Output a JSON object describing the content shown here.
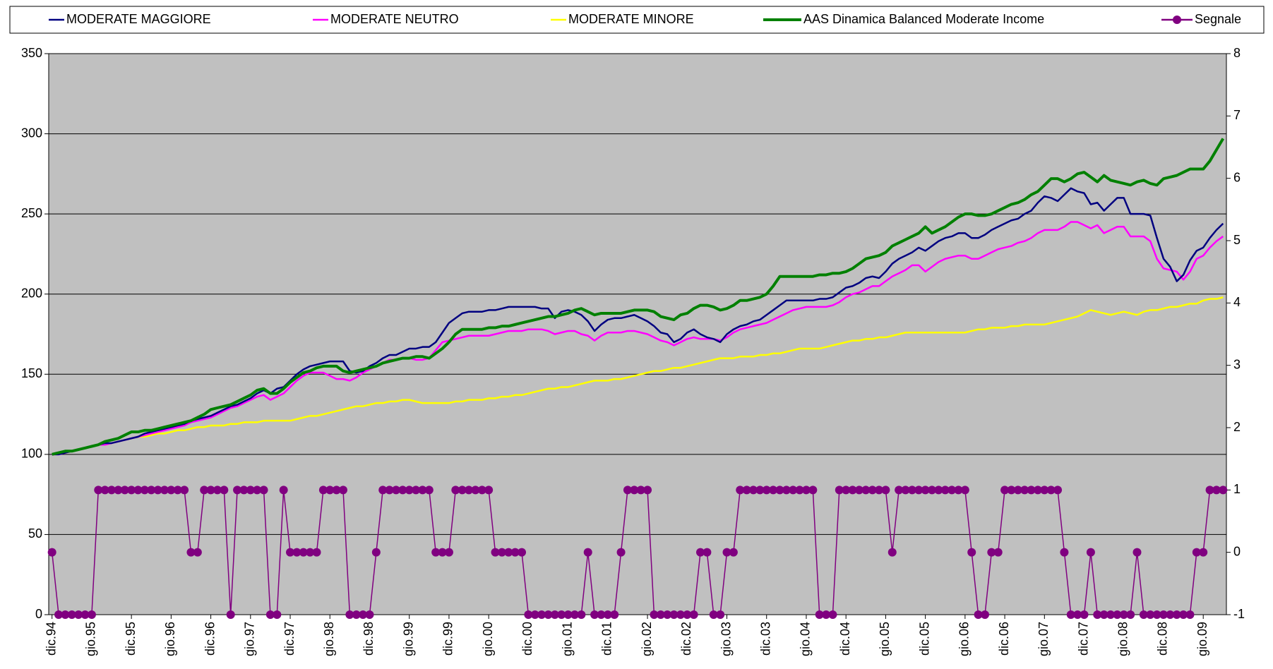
{
  "chart_data": {
    "type": "line",
    "legend": "top",
    "grid": true,
    "background": "#c0c0c0",
    "categories": [
      "dic.94",
      null,
      null,
      null,
      null,
      null,
      "gio.95",
      null,
      null,
      null,
      null,
      null,
      "dic.95",
      null,
      null,
      null,
      null,
      null,
      "gio.96",
      null,
      null,
      null,
      null,
      null,
      "dic.96",
      null,
      null,
      null,
      null,
      null,
      "gio.97",
      null,
      null,
      null,
      null,
      null,
      "dic.97",
      null,
      null,
      null,
      null,
      null,
      "gio.98",
      null,
      null,
      null,
      null,
      null,
      "dic.98",
      null,
      null,
      null,
      null,
      null,
      "gio.99",
      null,
      null,
      null,
      null,
      null,
      "dic.99",
      null,
      null,
      null,
      null,
      null,
      "gio.00",
      null,
      null,
      null,
      null,
      null,
      "dic.00",
      null,
      null,
      null,
      null,
      null,
      "gio.01",
      null,
      null,
      null,
      null,
      null,
      "dic.01",
      null,
      null,
      null,
      null,
      null,
      "gio.02",
      null,
      null,
      null,
      null,
      null,
      "dic.02",
      null,
      null,
      null,
      null,
      null,
      "gio.03",
      null,
      null,
      null,
      null,
      null,
      "dic.03",
      null,
      null,
      null,
      null,
      null,
      "gio.04",
      null,
      null,
      null,
      null,
      null,
      "dic.04",
      null,
      null,
      null,
      null,
      null,
      "gio.05",
      null,
      null,
      null,
      null,
      null,
      "dic.05",
      null,
      null,
      null,
      null,
      null,
      "gio.06",
      null,
      null,
      null,
      null,
      null,
      "dic.06",
      null,
      null,
      null,
      null,
      null,
      "gio.07",
      null,
      null,
      null,
      null,
      null,
      "dic.07",
      null,
      null,
      null,
      null,
      null,
      "gio.08",
      null,
      null,
      null,
      null,
      null,
      "dic.08",
      null,
      null,
      null,
      null,
      null,
      "gio.09",
      null,
      null,
      null
    ],
    "ylim": [
      0,
      350
    ],
    "yticks": [
      0,
      50,
      100,
      150,
      200,
      250,
      300,
      350
    ],
    "y2lim": [
      -1,
      8
    ],
    "y2ticks": [
      -1,
      0,
      1,
      2,
      3,
      4,
      5,
      6,
      7,
      8
    ],
    "series": [
      {
        "name": "MODERATE MAGGIORE",
        "color": "#000080",
        "values": [
          100,
          100,
          101,
          102,
          103,
          104,
          105,
          106,
          107,
          107,
          108,
          109,
          110,
          111,
          113,
          114,
          115,
          116,
          117,
          118,
          119,
          121,
          122,
          123,
          124,
          126,
          128,
          130,
          131,
          133,
          135,
          138,
          140,
          138,
          141,
          142,
          146,
          150,
          153,
          155,
          156,
          157,
          158,
          158,
          158,
          152,
          151,
          152,
          155,
          157,
          160,
          162,
          162,
          164,
          166,
          166,
          167,
          167,
          170,
          176,
          182,
          185,
          188,
          189,
          189,
          189,
          190,
          190,
          191,
          192,
          192,
          192,
          192,
          192,
          191,
          191,
          185,
          189,
          190,
          189,
          187,
          183,
          177,
          181,
          184,
          185,
          185,
          186,
          187,
          185,
          183,
          180,
          176,
          175,
          170,
          172,
          176,
          178,
          175,
          173,
          172,
          170,
          175,
          178,
          180,
          181,
          183,
          184,
          187,
          190,
          193,
          196,
          196,
          196,
          196,
          196,
          197,
          197,
          198,
          201,
          204,
          205,
          207,
          210,
          211,
          210,
          214,
          219,
          222,
          224,
          226,
          229,
          227,
          230,
          233,
          235,
          236,
          238,
          238,
          235,
          235,
          237,
          240,
          242,
          244,
          246,
          247,
          250,
          252,
          257,
          261,
          260,
          258,
          262,
          266,
          264,
          263,
          256,
          257,
          252,
          256,
          260,
          260,
          250,
          250,
          250,
          249,
          235,
          222,
          217,
          208,
          212,
          221,
          227,
          229,
          235,
          240,
          244
        ]
      },
      {
        "name": "MODERATE NEUTRO",
        "color": "#ff00ff",
        "values": [
          100,
          100,
          101,
          102,
          103,
          104,
          105,
          106,
          106,
          107,
          108,
          109,
          110,
          111,
          112,
          113,
          114,
          115,
          116,
          117,
          118,
          120,
          121,
          122,
          123,
          125,
          127,
          129,
          130,
          132,
          134,
          136,
          137,
          134,
          136,
          138,
          142,
          146,
          149,
          151,
          151,
          151,
          149,
          147,
          147,
          146,
          148,
          151,
          153,
          155,
          157,
          159,
          159,
          160,
          160,
          159,
          159,
          160,
          165,
          170,
          171,
          172,
          173,
          174,
          174,
          174,
          174,
          175,
          176,
          177,
          177,
          177,
          178,
          178,
          178,
          177,
          175,
          176,
          177,
          177,
          175,
          174,
          171,
          174,
          176,
          176,
          176,
          177,
          177,
          176,
          175,
          173,
          171,
          170,
          168,
          170,
          172,
          173,
          172,
          172,
          172,
          171,
          173,
          176,
          178,
          179,
          180,
          181,
          182,
          184,
          186,
          188,
          190,
          191,
          192,
          192,
          192,
          192,
          193,
          195,
          198,
          200,
          201,
          203,
          205,
          205,
          208,
          211,
          213,
          215,
          218,
          218,
          214,
          217,
          220,
          222,
          223,
          224,
          224,
          222,
          222,
          224,
          226,
          228,
          229,
          230,
          232,
          233,
          235,
          238,
          240,
          240,
          240,
          242,
          245,
          245,
          243,
          241,
          243,
          238,
          240,
          242,
          242,
          236,
          236,
          236,
          233,
          222,
          216,
          215,
          214,
          209,
          214,
          222,
          224,
          229,
          233,
          236
        ]
      },
      {
        "name": "MODERATE MINORE",
        "color": "#ffff00",
        "values": [
          100,
          101,
          102,
          102,
          103,
          104,
          105,
          106,
          106,
          107,
          108,
          109,
          110,
          111,
          111,
          112,
          113,
          113,
          114,
          115,
          115,
          116,
          117,
          117,
          118,
          118,
          118,
          119,
          119,
          120,
          120,
          120,
          121,
          121,
          121,
          121,
          121,
          122,
          123,
          124,
          124,
          125,
          126,
          127,
          128,
          129,
          130,
          130,
          131,
          132,
          132,
          133,
          133,
          134,
          134,
          133,
          132,
          132,
          132,
          132,
          132,
          133,
          133,
          134,
          134,
          134,
          135,
          135,
          136,
          136,
          137,
          137,
          138,
          139,
          140,
          141,
          141,
          142,
          142,
          143,
          144,
          145,
          146,
          146,
          146,
          147,
          147,
          148,
          149,
          150,
          151,
          152,
          152,
          153,
          154,
          154,
          155,
          156,
          157,
          158,
          159,
          160,
          160,
          160,
          161,
          161,
          161,
          162,
          162,
          163,
          163,
          164,
          165,
          166,
          166,
          166,
          166,
          167,
          168,
          169,
          170,
          171,
          171,
          172,
          172,
          173,
          173,
          174,
          175,
          176,
          176,
          176,
          176,
          176,
          176,
          176,
          176,
          176,
          176,
          177,
          178,
          178,
          179,
          179,
          179,
          180,
          180,
          181,
          181,
          181,
          181,
          182,
          183,
          184,
          185,
          186,
          188,
          190,
          189,
          188,
          187,
          188,
          189,
          188,
          187,
          189,
          190,
          190,
          191,
          192,
          192,
          193,
          194,
          194,
          196,
          197,
          197,
          198
        ]
      },
      {
        "name": "AAS Dinamica Balanced Moderate Income",
        "color": "#008000",
        "values": [
          100,
          101,
          102,
          102,
          103,
          104,
          105,
          106,
          108,
          109,
          110,
          112,
          114,
          114,
          115,
          115,
          116,
          117,
          118,
          119,
          120,
          121,
          123,
          125,
          128,
          129,
          130,
          131,
          133,
          135,
          137,
          140,
          141,
          138,
          138,
          141,
          145,
          148,
          151,
          152,
          154,
          155,
          155,
          155,
          152,
          151,
          152,
          153,
          154,
          155,
          157,
          158,
          159,
          160,
          160,
          161,
          161,
          160,
          163,
          166,
          170,
          175,
          178,
          178,
          178,
          178,
          179,
          179,
          180,
          180,
          181,
          182,
          183,
          184,
          185,
          186,
          186,
          187,
          188,
          190,
          191,
          189,
          187,
          188,
          188,
          188,
          188,
          189,
          190,
          190,
          190,
          189,
          186,
          185,
          184,
          187,
          188,
          191,
          193,
          193,
          192,
          190,
          191,
          193,
          196,
          196,
          197,
          198,
          200,
          205,
          211,
          211,
          211,
          211,
          211,
          211,
          212,
          212,
          213,
          213,
          214,
          216,
          219,
          222,
          223,
          224,
          226,
          230,
          232,
          234,
          236,
          238,
          242,
          238,
          240,
          242,
          245,
          248,
          250,
          250,
          249,
          249,
          250,
          252,
          254,
          256,
          257,
          259,
          262,
          264,
          268,
          272,
          272,
          270,
          272,
          275,
          276,
          273,
          270,
          274,
          271,
          270,
          269,
          268,
          270,
          271,
          269,
          268,
          272,
          273,
          274,
          276,
          278,
          278,
          278,
          283,
          290,
          297
        ]
      },
      {
        "name": "Segnale",
        "color": "#800080",
        "axis": "y2",
        "marker": "circle",
        "values": [
          0,
          -1,
          -1,
          -1,
          -1,
          -1,
          -1,
          1,
          1,
          1,
          1,
          1,
          1,
          1,
          1,
          1,
          1,
          1,
          1,
          1,
          1,
          0,
          0,
          1,
          1,
          1,
          1,
          -1,
          1,
          1,
          1,
          1,
          1,
          -1,
          -1,
          1,
          0,
          0,
          0,
          0,
          0,
          1,
          1,
          1,
          1,
          -1,
          -1,
          -1,
          -1,
          0,
          1,
          1,
          1,
          1,
          1,
          1,
          1,
          1,
          0,
          0,
          0,
          1,
          1,
          1,
          1,
          1,
          1,
          0,
          0,
          0,
          0,
          0,
          -1,
          -1,
          -1,
          -1,
          -1,
          -1,
          -1,
          -1,
          -1,
          0,
          -1,
          -1,
          -1,
          -1,
          0,
          1,
          1,
          1,
          1,
          -1,
          -1,
          -1,
          -1,
          -1,
          -1,
          -1,
          0,
          0,
          -1,
          -1,
          0,
          0,
          1,
          1,
          1,
          1,
          1,
          1,
          1,
          1,
          1,
          1,
          1,
          1,
          -1,
          -1,
          -1,
          1,
          1,
          1,
          1,
          1,
          1,
          1,
          1,
          0,
          1,
          1,
          1,
          1,
          1,
          1,
          1,
          1,
          1,
          1,
          1,
          0,
          -1,
          -1,
          0,
          0,
          1,
          1,
          1,
          1,
          1,
          1,
          1,
          1,
          1,
          0,
          -1,
          -1,
          -1,
          0,
          -1,
          -1,
          -1,
          -1,
          -1,
          -1,
          0,
          -1,
          -1,
          -1,
          -1,
          -1,
          -1,
          -1,
          -1,
          0,
          0,
          1,
          1,
          1
        ]
      }
    ]
  }
}
